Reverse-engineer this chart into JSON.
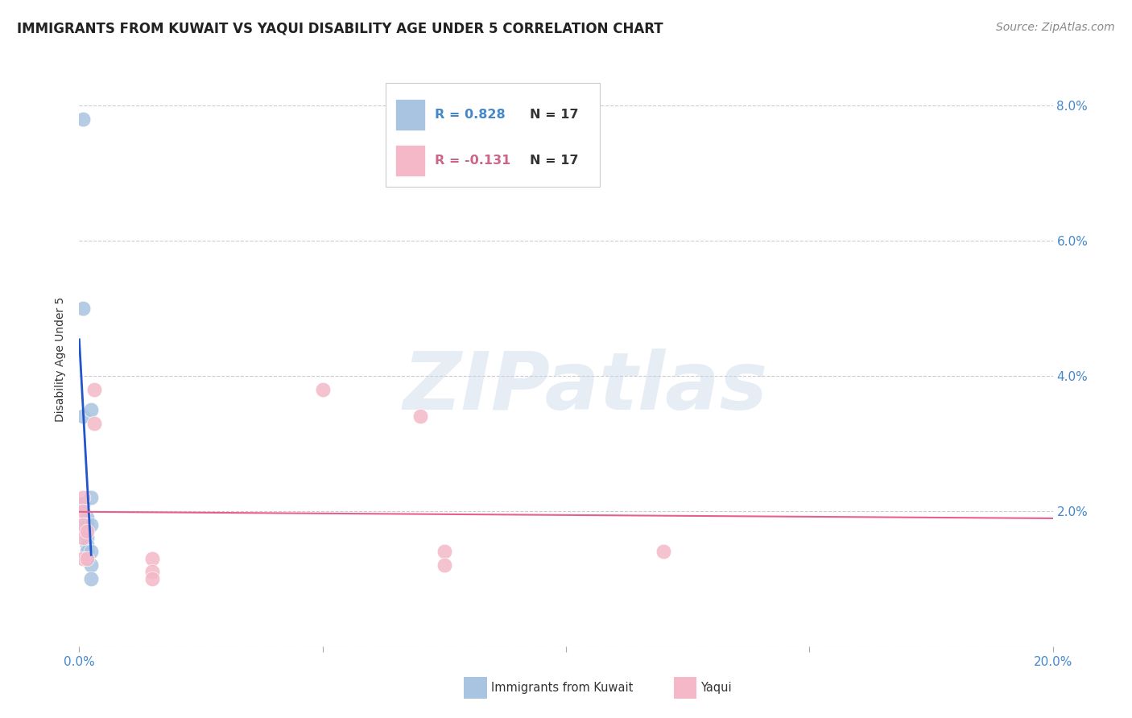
{
  "title": "IMMIGRANTS FROM KUWAIT VS YAQUI DISABILITY AGE UNDER 5 CORRELATION CHART",
  "source": "Source: ZipAtlas.com",
  "ylabel_label": "Disability Age Under 5",
  "xlim": [
    0.0,
    0.2
  ],
  "ylim": [
    0.0,
    0.085
  ],
  "xticks": [
    0.0,
    0.05,
    0.1,
    0.15,
    0.2
  ],
  "xtick_labels": [
    "0.0%",
    "",
    "",
    "",
    "20.0%"
  ],
  "yticks": [
    0.0,
    0.02,
    0.04,
    0.06,
    0.08
  ],
  "ytick_labels": [
    "",
    "2.0%",
    "4.0%",
    "6.0%",
    "8.0%"
  ],
  "R_kuwait": 0.828,
  "N_kuwait": 17,
  "R_yaqui": -0.131,
  "N_yaqui": 17,
  "kuwait_color": "#a8c4e0",
  "yaqui_color": "#f4b8c8",
  "regression_kuwait_color": "#2255cc",
  "regression_yaqui_color": "#e8608a",
  "watermark_text": "ZIPatlas",
  "kuwait_x": [
    0.0008,
    0.0008,
    0.0008,
    0.0008,
    0.0008,
    0.0016,
    0.0016,
    0.0016,
    0.0016,
    0.0016,
    0.0016,
    0.0024,
    0.0024,
    0.0024,
    0.0024,
    0.0024,
    0.0024
  ],
  "kuwait_y": [
    0.078,
    0.05,
    0.034,
    0.021,
    0.018,
    0.019,
    0.018,
    0.016,
    0.015,
    0.014,
    0.013,
    0.035,
    0.022,
    0.018,
    0.014,
    0.012,
    0.01
  ],
  "yaqui_x": [
    0.0008,
    0.0008,
    0.0008,
    0.0008,
    0.0008,
    0.0016,
    0.0016,
    0.003,
    0.003,
    0.05,
    0.07,
    0.075,
    0.075,
    0.12,
    0.015,
    0.015,
    0.015
  ],
  "yaqui_y": [
    0.022,
    0.02,
    0.018,
    0.016,
    0.013,
    0.017,
    0.013,
    0.038,
    0.033,
    0.038,
    0.034,
    0.014,
    0.012,
    0.014,
    0.013,
    0.011,
    0.01
  ],
  "title_fontsize": 12,
  "source_fontsize": 10,
  "axis_label_fontsize": 10,
  "tick_label_color": "#4488cc",
  "tick_label_fontsize": 11,
  "legend_R_color_kuwait": "#4488cc",
  "legend_R_color_yaqui": "#cc6688",
  "legend_N_color": "#333333",
  "bottom_legend_items": [
    "Immigrants from Kuwait",
    "Yaqui"
  ]
}
